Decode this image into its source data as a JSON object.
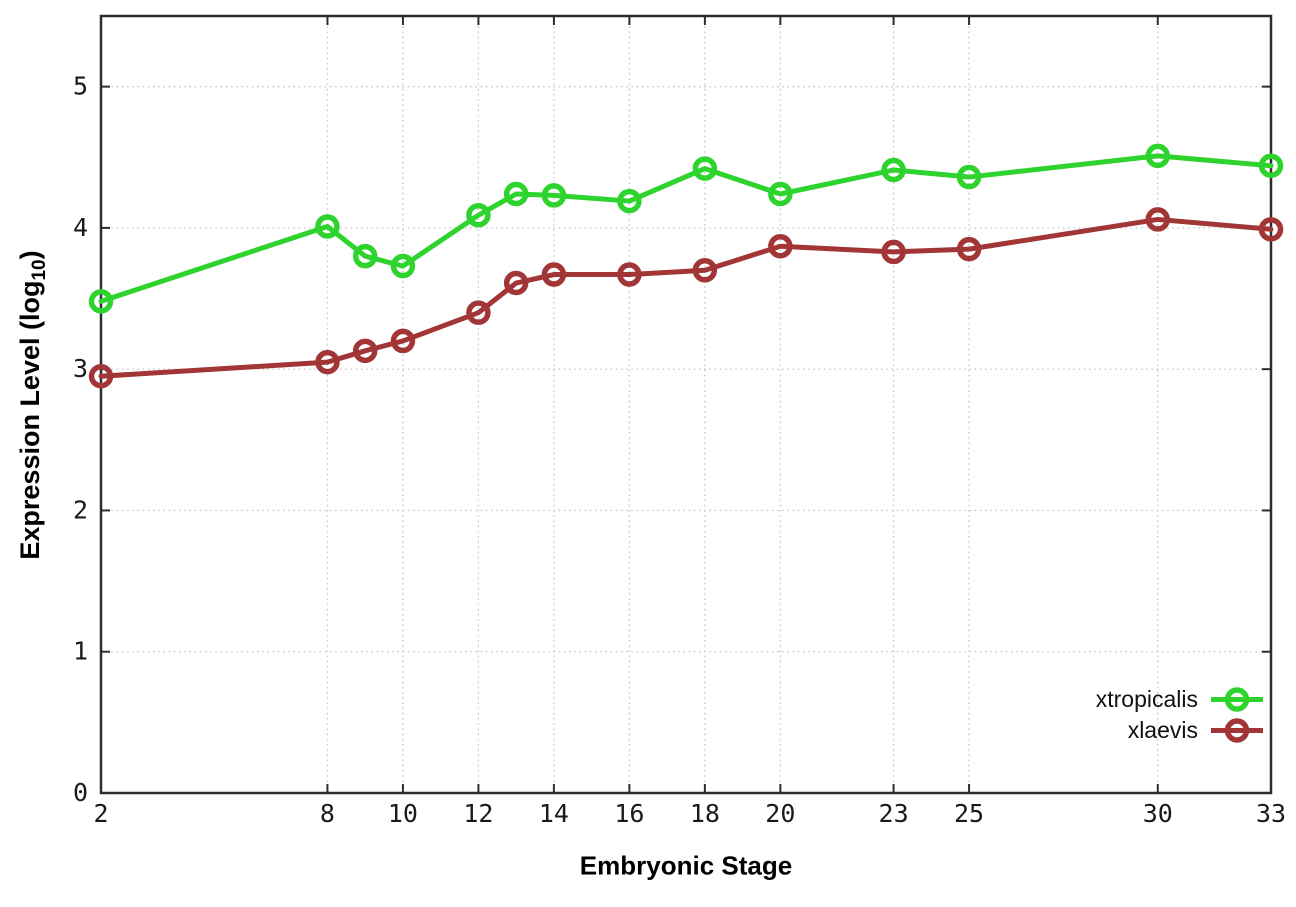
{
  "chart_data": {
    "type": "line",
    "title": "",
    "xlabel": "Embryonic Stage",
    "ylabel": "Expression Level (log10)",
    "ylabel_parts": {
      "prefix": "Expression Level (log",
      "sub": "10",
      "suffix": ")"
    },
    "x": [
      2,
      8,
      9,
      10,
      12,
      13,
      14,
      16,
      18,
      20,
      23,
      25,
      30,
      33
    ],
    "xticks": [
      2,
      8,
      10,
      12,
      14,
      16,
      18,
      20,
      23,
      25,
      30,
      33
    ],
    "yticks": [
      0,
      1,
      2,
      3,
      4,
      5
    ],
    "xlim": [
      2,
      33
    ],
    "ylim": [
      0,
      5.5
    ],
    "grid": true,
    "legend_position": "inside-bottom-right",
    "series": [
      {
        "name": "xtropicalis",
        "color": "#2ed32e",
        "marker": "open-circle",
        "values": [
          3.48,
          4.01,
          3.8,
          3.73,
          4.09,
          4.24,
          4.23,
          4.19,
          4.42,
          4.24,
          4.41,
          4.36,
          4.51,
          4.44
        ]
      },
      {
        "name": "xlaevis",
        "color": "#a23535",
        "marker": "open-circle",
        "values": [
          2.95,
          3.05,
          3.13,
          3.2,
          3.4,
          3.61,
          3.67,
          3.67,
          3.7,
          3.87,
          3.83,
          3.85,
          4.06,
          3.99
        ]
      }
    ]
  },
  "colors": {
    "background": "#ffffff",
    "plot_border": "#2d2d2d",
    "grid_line": "#c9c9c9",
    "tick_text": "#1a1a1a"
  }
}
